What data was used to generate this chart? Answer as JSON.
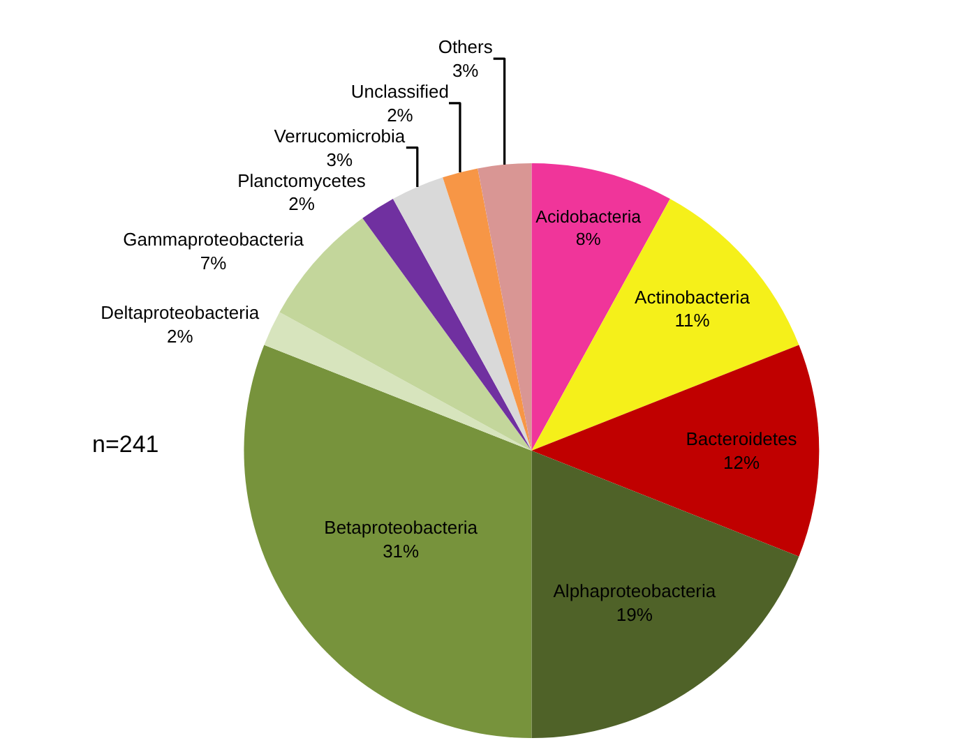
{
  "chart_data": {
    "type": "pie",
    "categories": [
      "Acidobacteria",
      "Actinobacteria",
      "Bacteroidetes",
      "Alphaproteobacteria",
      "Betaproteobacteria",
      "Deltaproteobacteria",
      "Gammaproteobacteria",
      "Planctomycetes",
      "Verrucomicrobia",
      "Unclassified",
      "Others"
    ],
    "values": [
      8,
      11,
      12,
      19,
      31,
      2,
      7,
      2,
      3,
      2,
      3
    ],
    "value_labels": [
      "8%",
      "11%",
      "12%",
      "19%",
      "31%",
      "2%",
      "7%",
      "2%",
      "3%",
      "2%",
      "3%"
    ],
    "colors": [
      "#f0359a",
      "#f5f01a",
      "#c00000",
      "#4f6228",
      "#77933c",
      "#d7e4bd",
      "#c3d69b",
      "#7030a0",
      "#d9d9d9",
      "#f79646",
      "#d99694"
    ],
    "annotations": [
      "n=241"
    ]
  }
}
